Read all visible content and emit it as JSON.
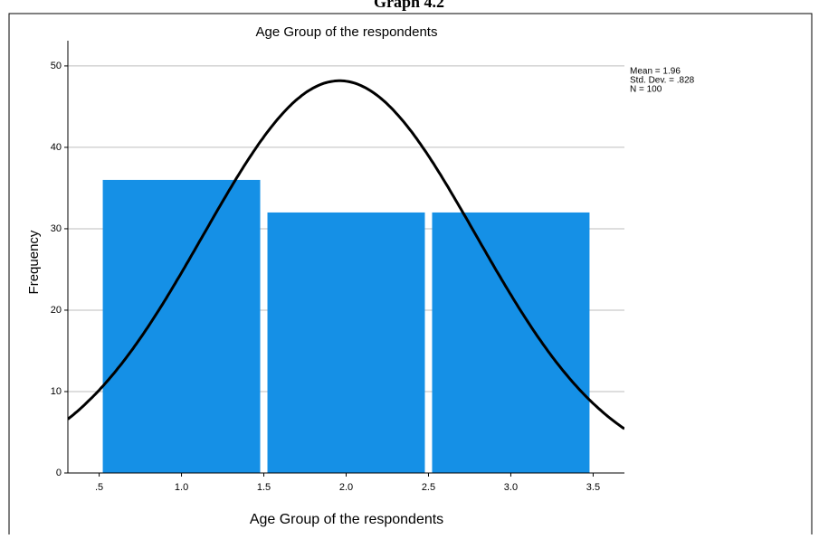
{
  "header": {
    "title": "Graph 4.2"
  },
  "chart_data": {
    "type": "histogram",
    "title": "Age Group of the respondents",
    "x_label": "Age Group of the respondents",
    "y_label": "Frequency",
    "bins": [
      0.5,
      1.5,
      2.5,
      3.5
    ],
    "values": [
      36,
      32,
      32
    ],
    "color": "#1590e6",
    "xlim": [
      0.31,
      3.69
    ],
    "ylim": [
      0,
      53.1
    ],
    "xticks": [
      {
        "value": 0.5,
        "label": ".5"
      },
      {
        "value": 1.0,
        "label": "1.0"
      },
      {
        "value": 1.5,
        "label": "1.5"
      },
      {
        "value": 2.0,
        "label": "2.0"
      },
      {
        "value": 2.5,
        "label": "2.5"
      },
      {
        "value": 3.0,
        "label": "3.0"
      },
      {
        "value": 3.5,
        "label": "3.5"
      }
    ],
    "yticks": [
      0,
      10,
      20,
      30,
      40,
      50
    ],
    "grid": true,
    "normal_curve": {
      "mean": 1.96,
      "std_dev": 0.828,
      "n": 100,
      "color": "#000000"
    },
    "annotations": [
      "Mean = 1.96",
      "Std. Dev. = .828",
      "N = 100"
    ]
  }
}
